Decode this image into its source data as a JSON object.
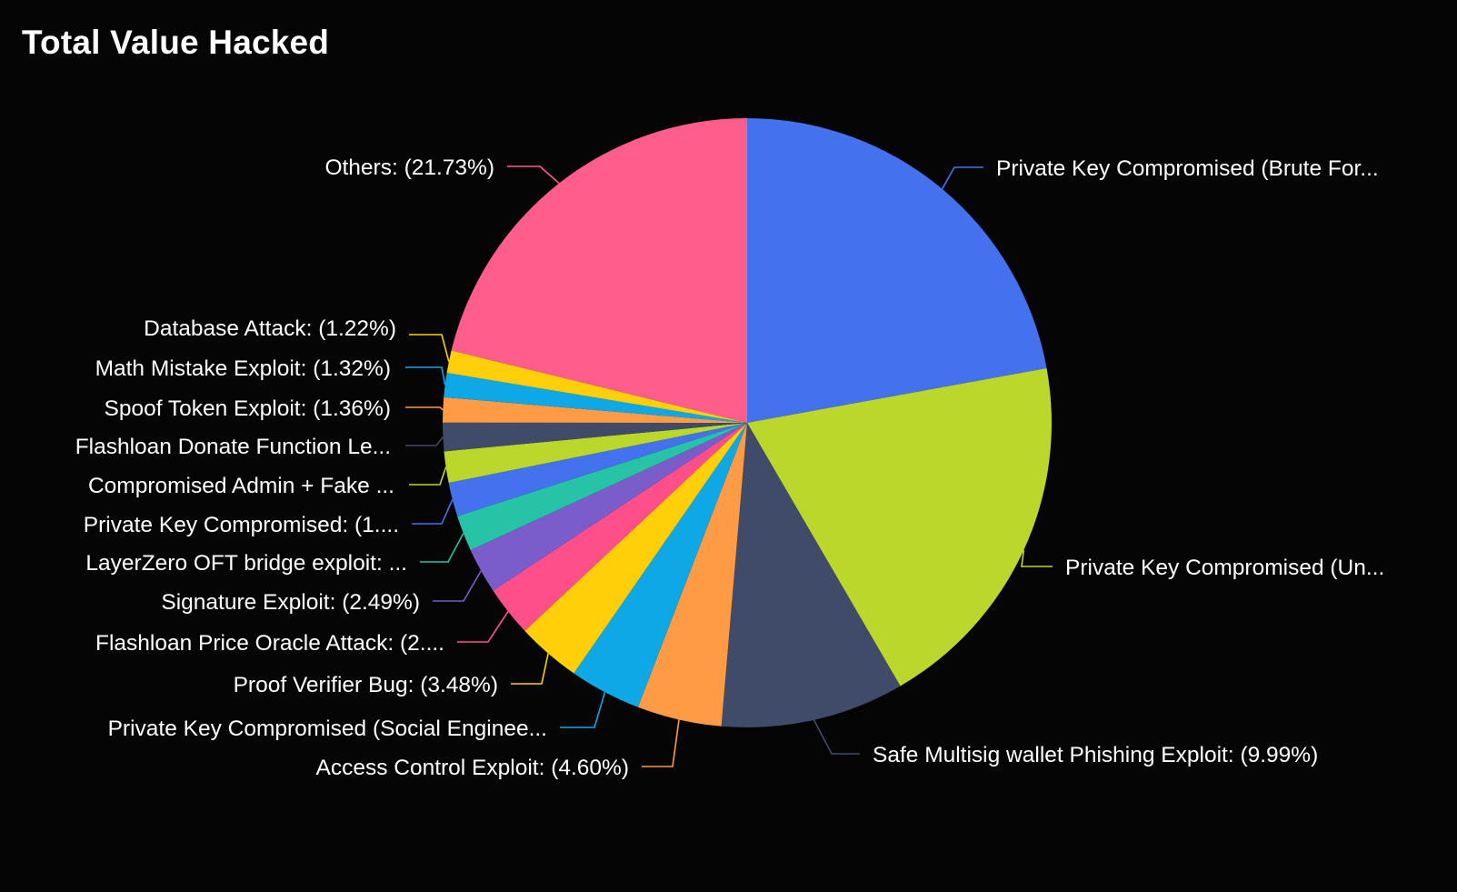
{
  "title": "Total Value Hacked",
  "chart_data": {
    "type": "pie",
    "title": "Total Value Hacked",
    "slices": [
      {
        "label": "Private Key Compromised (Brute For...",
        "value": 22.7,
        "color": "#4472ee"
      },
      {
        "label": "Private Key Compromised (Un...",
        "value": 19.98,
        "color": "#bbd72c"
      },
      {
        "label": "Safe Multisig wallet Phishing Exploit: (9.99%)",
        "value": 9.99,
        "color": "#3f4b69"
      },
      {
        "label": "Access Control Exploit: (4.60%)",
        "value": 4.6,
        "color": "#ff9a45"
      },
      {
        "label": "Private Key Compromised (Social Enginee...",
        "value": 3.9,
        "color": "#0ea8e6"
      },
      {
        "label": "Proof Verifier Bug: (3.48%)",
        "value": 3.48,
        "color": "#ffcf0a"
      },
      {
        "label": "Flashloan Price Oracle Attack: (2....",
        "value": 2.75,
        "color": "#ff4f8b"
      },
      {
        "label": "Signature Exploit: (2.49%)",
        "value": 2.49,
        "color": "#7b5ccb"
      },
      {
        "label": "LayerZero OFT bridge exploit: ...",
        "value": 1.95,
        "color": "#26c3a6"
      },
      {
        "label": "Private Key Compromised: (1....",
        "value": 1.85,
        "color": "#4472ee"
      },
      {
        "label": "Compromised Admin + Fake ...",
        "value": 1.7,
        "color": "#bbd72c"
      },
      {
        "label": "Flashloan Donate Function Le...",
        "value": 1.55,
        "color": "#3f4b69"
      },
      {
        "label": "Spoof Token Exploit: (1.36%)",
        "value": 1.36,
        "color": "#ff9a45"
      },
      {
        "label": "Math Mistake Exploit: (1.32%)",
        "value": 1.32,
        "color": "#0ea8e6"
      },
      {
        "label": "Database Attack: (1.22%)",
        "value": 1.22,
        "color": "#ffcf0a"
      },
      {
        "label": "Others: (21.73%)",
        "value": 21.73,
        "color": "#ff5d8c"
      }
    ],
    "legend": "none",
    "start_angle": "12 o'clock",
    "direction": "clockwise",
    "background": "#050505",
    "label_color": "#ffffff"
  }
}
